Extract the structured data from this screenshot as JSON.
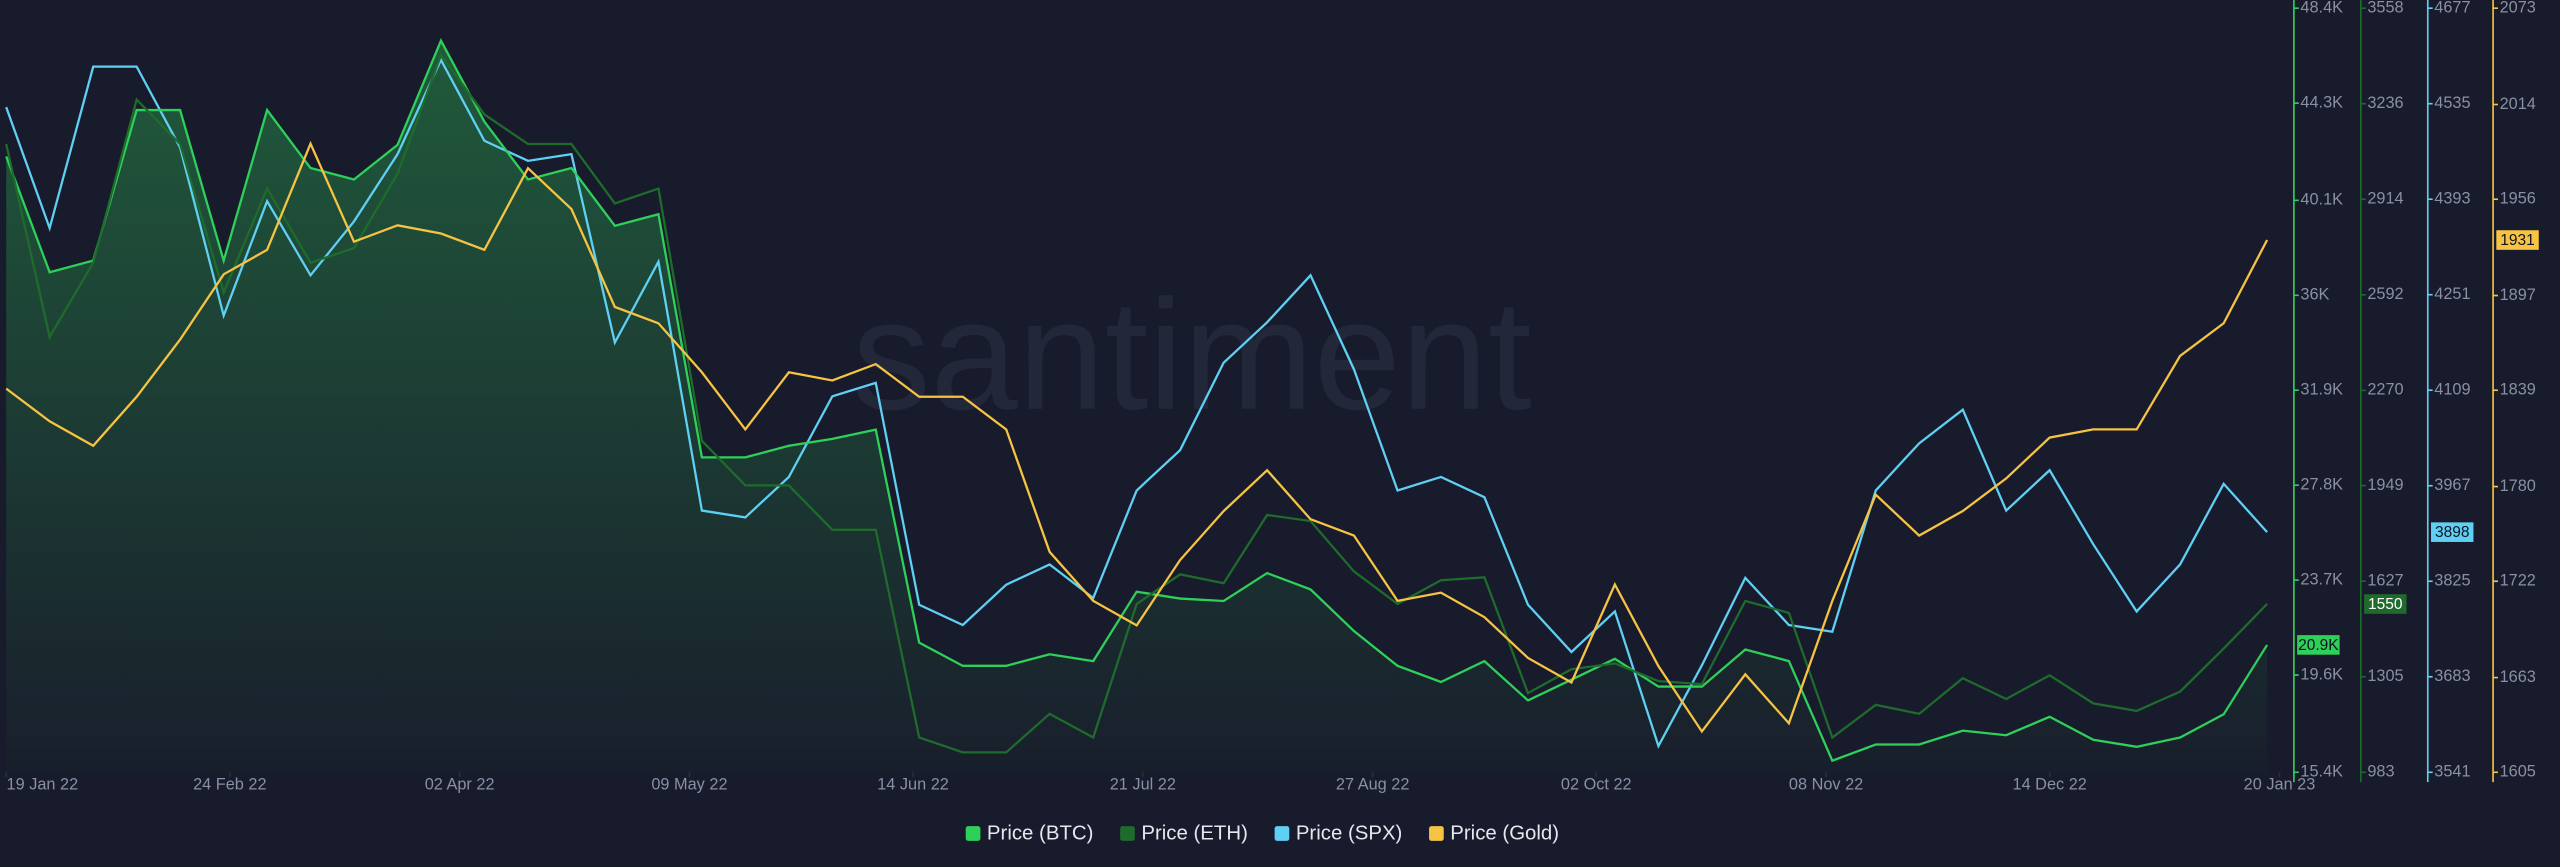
{
  "chart_data": {
    "type": "multi-axis-line",
    "watermark": "santiment",
    "xlim": [
      "2022-01-18",
      "2023-01-21"
    ],
    "xticks": [
      {
        "value": "2022-01-19",
        "label": "19 Jan 22"
      },
      {
        "value": "2022-02-24",
        "label": "24 Feb 22"
      },
      {
        "value": "2022-04-02",
        "label": "02 Apr 22"
      },
      {
        "value": "2022-05-09",
        "label": "09 May 22"
      },
      {
        "value": "2022-06-14",
        "label": "14 Jun 22"
      },
      {
        "value": "2022-07-21",
        "label": "21 Jul 22"
      },
      {
        "value": "2022-08-27",
        "label": "27 Aug 22"
      },
      {
        "value": "2022-10-02",
        "label": "02 Oct 22"
      },
      {
        "value": "2022-11-08",
        "label": "08 Nov 22"
      },
      {
        "value": "2022-12-14",
        "label": "14 Dec 22"
      },
      {
        "value": "2023-01-20",
        "label": "20 Jan 23"
      }
    ],
    "x": [
      "2022-01-19",
      "2022-01-26",
      "2022-02-02",
      "2022-02-09",
      "2022-02-16",
      "2022-02-23",
      "2022-03-02",
      "2022-03-09",
      "2022-03-16",
      "2022-03-23",
      "2022-03-30",
      "2022-04-06",
      "2022-04-13",
      "2022-04-20",
      "2022-04-27",
      "2022-05-04",
      "2022-05-11",
      "2022-05-18",
      "2022-05-25",
      "2022-06-01",
      "2022-06-08",
      "2022-06-15",
      "2022-06-22",
      "2022-06-29",
      "2022-07-06",
      "2022-07-13",
      "2022-07-20",
      "2022-07-27",
      "2022-08-03",
      "2022-08-10",
      "2022-08-17",
      "2022-08-24",
      "2022-08-31",
      "2022-09-07",
      "2022-09-14",
      "2022-09-21",
      "2022-09-28",
      "2022-10-05",
      "2022-10-12",
      "2022-10-19",
      "2022-10-26",
      "2022-11-02",
      "2022-11-09",
      "2022-11-16",
      "2022-11-23",
      "2022-11-30",
      "2022-12-07",
      "2022-12-14",
      "2022-12-21",
      "2022-12-28",
      "2023-01-04",
      "2023-01-11",
      "2023-01-18"
    ],
    "series": [
      {
        "name": "Price (BTC)",
        "color": "#2fd05a",
        "area": true,
        "last_label": "20.9K",
        "ylim": [
          15400,
          48400
        ],
        "yticks": [
          {
            "value": 15400,
            "label": "15.4K"
          },
          {
            "value": 19600,
            "label": "19.6K"
          },
          {
            "value": 23700,
            "label": "23.7K"
          },
          {
            "value": 27800,
            "label": "27.8K"
          },
          {
            "value": 31900,
            "label": "31.9K"
          },
          {
            "value": 36000,
            "label": "36K"
          },
          {
            "value": 40100,
            "label": "40.1K"
          },
          {
            "value": 44300,
            "label": "44.3K"
          },
          {
            "value": 48400,
            "label": "48.4K"
          }
        ],
        "values": [
          42000,
          37000,
          37500,
          44000,
          44000,
          37500,
          44000,
          41500,
          41000,
          42500,
          47000,
          43500,
          41000,
          41500,
          39000,
          39500,
          29000,
          29000,
          29500,
          29800,
          30200,
          21000,
          20000,
          20000,
          20500,
          20200,
          23200,
          22900,
          22800,
          24000,
          23300,
          21500,
          20000,
          19300,
          20200,
          18500,
          19400,
          20300,
          19100,
          19100,
          20700,
          20200,
          15900,
          16600,
          16600,
          17200,
          17000,
          17800,
          16800,
          16500,
          16900,
          17900,
          20900
        ]
      },
      {
        "name": "Price (ETH)",
        "color": "#1e6b2c",
        "last_label": "1550",
        "ylim": [
          983,
          3558
        ],
        "yticks": [
          983,
          1305,
          1627,
          1949,
          2270,
          2592,
          2914,
          3236,
          3558
        ],
        "values": [
          3100,
          2450,
          2700,
          3250,
          3100,
          2600,
          2950,
          2700,
          2750,
          3000,
          3400,
          3200,
          3100,
          3100,
          2900,
          2950,
          2100,
          1950,
          1950,
          1800,
          1800,
          1100,
          1050,
          1050,
          1180,
          1100,
          1550,
          1650,
          1620,
          1850,
          1830,
          1660,
          1550,
          1630,
          1640,
          1250,
          1330,
          1350,
          1290,
          1280,
          1560,
          1520,
          1100,
          1210,
          1180,
          1300,
          1230,
          1310,
          1215,
          1190,
          1255,
          1400,
          1550
        ]
      },
      {
        "name": "Price (SPX)",
        "color": "#5fd0f3",
        "last_label": "3898",
        "ylim": [
          3541,
          4677
        ],
        "yticks": [
          3541,
          3683,
          3825,
          3967,
          4109,
          4251,
          4393,
          4535,
          4677
        ],
        "values": [
          4530,
          4350,
          4590,
          4590,
          4470,
          4220,
          4390,
          4280,
          4360,
          4460,
          4600,
          4480,
          4450,
          4460,
          4180,
          4300,
          3930,
          3920,
          3980,
          4100,
          4120,
          3790,
          3760,
          3820,
          3850,
          3800,
          3960,
          4020,
          4150,
          4210,
          4280,
          4140,
          3960,
          3980,
          3950,
          3790,
          3720,
          3780,
          3580,
          3700,
          3830,
          3760,
          3750,
          3960,
          4030,
          4080,
          3930,
          3990,
          3880,
          3780,
          3850,
          3970,
          3898
        ]
      },
      {
        "name": "Price (Gold)",
        "color": "#f6c343",
        "last_label": "1931",
        "ylim": [
          1605,
          2073
        ],
        "yticks": [
          1605,
          1663,
          1722,
          1780,
          1839,
          1897,
          1956,
          2014,
          2073
        ],
        "values": [
          1840,
          1820,
          1805,
          1835,
          1870,
          1910,
          1925,
          1990,
          1930,
          1940,
          1935,
          1925,
          1975,
          1950,
          1890,
          1880,
          1850,
          1815,
          1850,
          1845,
          1855,
          1835,
          1835,
          1815,
          1740,
          1710,
          1695,
          1735,
          1765,
          1790,
          1760,
          1750,
          1710,
          1715,
          1700,
          1675,
          1660,
          1720,
          1670,
          1630,
          1665,
          1635,
          1710,
          1775,
          1750,
          1765,
          1785,
          1810,
          1815,
          1815,
          1860,
          1880,
          1931
        ]
      }
    ]
  }
}
